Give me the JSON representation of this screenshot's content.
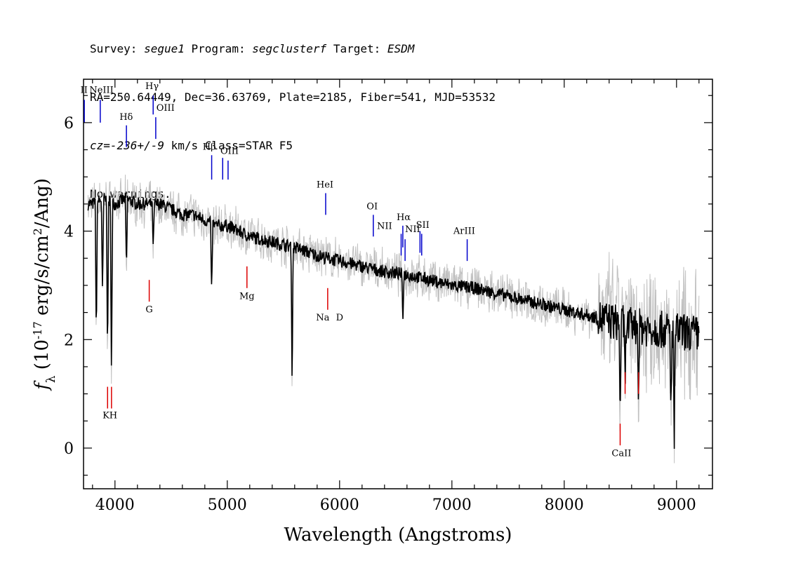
{
  "header": {
    "survey_label": "Survey:",
    "survey": "segue1",
    "program_label": "Program:",
    "program": "segclusterf",
    "target_label": "Target:",
    "target": "ESDM",
    "line2": "RA=250.64449, Dec=36.63769, Plate=2185, Fiber=541, MJD=53532",
    "cz_label": "cz=",
    "cz": "-236+/-9",
    "cz_rest": " km/s Class=STAR F5",
    "line4": "No warnings."
  },
  "colors": {
    "flux": "#000000",
    "error": "#c0c0c0",
    "emission": "#0000cc",
    "absorption": "#dd0000"
  },
  "chart_data": {
    "type": "line",
    "xlabel": "Wavelength (Angstroms)",
    "ylabel": "f_λ (10^-17 erg/s/cm^2/Ang)",
    "xlim": [
      3720,
      9320
    ],
    "ylim": [
      -0.75,
      6.8
    ],
    "xticks": [
      4000,
      5000,
      6000,
      7000,
      8000,
      9000
    ],
    "yticks": [
      0,
      2,
      4,
      6
    ],
    "grid": false,
    "series": [
      {
        "role": "flux",
        "x": [
          3800,
          3900,
          4000,
          4100,
          4200,
          4300,
          4400,
          4500,
          4600,
          4700,
          4800,
          4900,
          5000,
          5200,
          5400,
          5600,
          5800,
          6000,
          6200,
          6400,
          6600,
          6800,
          7000,
          7200,
          7400,
          7600,
          7800,
          8000,
          8200,
          8400,
          8600,
          8800,
          9000,
          9200
        ],
        "y": [
          4.5,
          4.6,
          4.5,
          4.6,
          4.5,
          4.5,
          4.5,
          4.4,
          4.3,
          4.3,
          4.2,
          4.1,
          4.1,
          3.9,
          3.8,
          3.7,
          3.55,
          3.45,
          3.35,
          3.25,
          3.2,
          3.1,
          3.0,
          2.95,
          2.85,
          2.75,
          2.65,
          2.55,
          2.45,
          2.35,
          2.25,
          2.2,
          2.15,
          2.1
        ]
      }
    ],
    "absorption_features": [
      {
        "x": 3834,
        "y": 1.9
      },
      {
        "x": 3889,
        "y": 2.7
      },
      {
        "x": 3934,
        "y": 1.6
      },
      {
        "x": 3969,
        "y": 1.3
      },
      {
        "x": 4102,
        "y": 3.2
      },
      {
        "x": 4341,
        "y": 3.6
      },
      {
        "x": 4861,
        "y": 2.8
      },
      {
        "x": 5577,
        "y": 1.2
      },
      {
        "x": 6563,
        "y": 2.35
      },
      {
        "x": 8498,
        "y": 0.6
      },
      {
        "x": 8542,
        "y": 1.1
      },
      {
        "x": 8662,
        "y": 1.0
      },
      {
        "x": 8950,
        "y": 0.5
      },
      {
        "x": 8980,
        "y": 0.1
      }
    ],
    "emission_lines": [
      {
        "label": "OII",
        "x": 3727,
        "top": 6.42,
        "bottom": 6.0
      },
      {
        "label": "NeIII",
        "x": 3869,
        "top": 6.42,
        "bottom": 6.0
      },
      {
        "label": "Hδ",
        "x": 4102,
        "top": 5.95,
        "bottom": 5.55
      },
      {
        "label": "Hγ",
        "x": 4340,
        "top": 6.5,
        "bottom": 6.15
      },
      {
        "label": "OIII",
        "x": 4363,
        "top": 6.1,
        "bottom": 5.7
      },
      {
        "label": "Hβ",
        "x": 4861,
        "top": 5.4,
        "bottom": 4.95
      },
      {
        "label": "OIII",
        "x": 4959,
        "top": 5.35,
        "bottom": 4.95
      },
      {
        "label": "OIII",
        "x": 5007,
        "top": 5.3,
        "bottom": 4.95
      },
      {
        "label": "HeI",
        "x": 5876,
        "top": 4.7,
        "bottom": 4.3
      },
      {
        "label": "OI",
        "x": 6300,
        "top": 4.3,
        "bottom": 3.9
      },
      {
        "label": "NII",
        "x": 6548,
        "top": 3.95,
        "bottom": 3.55
      },
      {
        "label": "Hα",
        "x": 6563,
        "top": 4.1,
        "bottom": 3.7
      },
      {
        "label": "NII",
        "x": 6583,
        "top": 3.85,
        "bottom": 3.45
      },
      {
        "label": "SII",
        "x": 6716,
        "top": 4.0,
        "bottom": 3.6
      },
      {
        "label": "SII",
        "x": 6731,
        "top": 3.95,
        "bottom": 3.55
      },
      {
        "label": "ArIII",
        "x": 7136,
        "top": 3.85,
        "bottom": 3.45
      }
    ],
    "absorption_lines": [
      {
        "label": "K",
        "x": 3934,
        "top": 1.13,
        "bottom": 0.73
      },
      {
        "label": "H",
        "x": 3969,
        "top": 1.13,
        "bottom": 0.73
      },
      {
        "label": "G",
        "x": 4305,
        "top": 3.1,
        "bottom": 2.7
      },
      {
        "label": "Mg",
        "x": 5175,
        "top": 3.35,
        "bottom": 2.95
      },
      {
        "label": "Na",
        "x": 5894,
        "top": 2.95,
        "bottom": 2.55
      },
      {
        "label": "CaII",
        "x": 8498,
        "top": 0.45,
        "bottom": 0.05
      },
      {
        "label": "CaII",
        "x": 8542,
        "top": 1.4,
        "bottom": 1.0
      },
      {
        "label": "CaII",
        "x": 8662,
        "top": 1.4,
        "bottom": 1.0
      }
    ],
    "line_labels": [
      {
        "text": "II",
        "x": 3725,
        "y": 6.55
      },
      {
        "text": "NeIII",
        "x": 3880,
        "y": 6.55
      },
      {
        "text": "Hδ",
        "x": 4100,
        "y": 6.05
      },
      {
        "text": "Hγ",
        "x": 4330,
        "y": 6.62
      },
      {
        "text": "OIII",
        "x": 4450,
        "y": 6.22
      },
      {
        "text": "Hβ",
        "x": 4840,
        "y": 5.5
      },
      {
        "text": "OIII",
        "x": 5020,
        "y": 5.42
      },
      {
        "text": "HeI",
        "x": 5870,
        "y": 4.8
      },
      {
        "text": "OI",
        "x": 6290,
        "y": 4.4
      },
      {
        "text": "NII",
        "x": 6400,
        "y": 4.04
      },
      {
        "text": "Hα",
        "x": 6570,
        "y": 4.2
      },
      {
        "text": "NII",
        "x": 6650,
        "y": 3.98
      },
      {
        "text": "SII",
        "x": 6740,
        "y": 4.06
      },
      {
        "text": "ArIII",
        "x": 7110,
        "y": 3.95
      },
      {
        "text": "KH",
        "x": 3955,
        "y": 0.55
      },
      {
        "text": "G",
        "x": 4305,
        "y": 2.5
      },
      {
        "text": "Mg",
        "x": 5175,
        "y": 2.75
      },
      {
        "text": "Na",
        "x": 5850,
        "y": 2.35
      },
      {
        "text": "D",
        "x": 6000,
        "y": 2.35
      },
      {
        "text": "CaII",
        "x": 8510,
        "y": -0.15
      }
    ]
  }
}
